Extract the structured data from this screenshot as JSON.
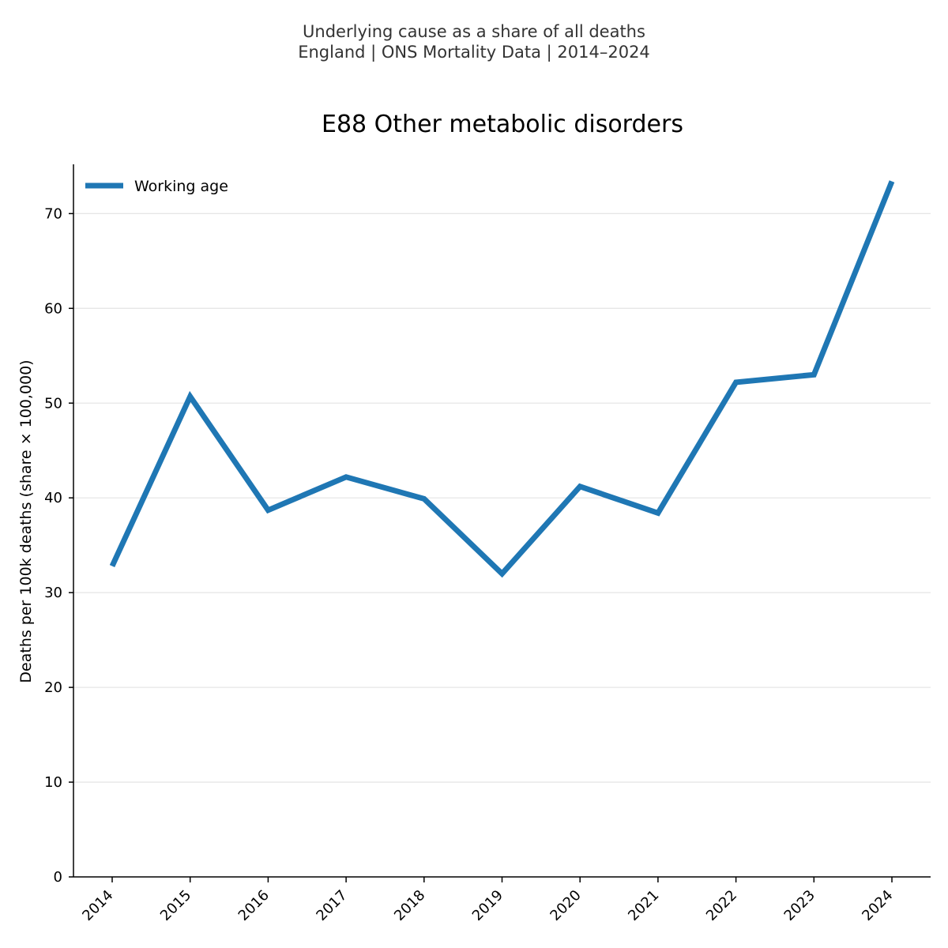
{
  "header": {
    "suptitle_line1": "Underlying cause as a share of all deaths",
    "suptitle_line2": "England | ONS Mortality Data | 2014–2024"
  },
  "chart_data": {
    "type": "line",
    "title": "E88 Other metabolic disorders",
    "xlabel": "",
    "ylabel": "Deaths per 100k deaths (share × 100,000)",
    "categories": [
      "2014",
      "2015",
      "2016",
      "2017",
      "2018",
      "2019",
      "2020",
      "2021",
      "2022",
      "2023",
      "2024"
    ],
    "series": [
      {
        "name": "Working age",
        "color": "#1f77b4",
        "values": [
          32.8,
          50.7,
          38.7,
          42.2,
          39.9,
          32.0,
          41.2,
          38.4,
          52.2,
          53.0,
          73.4
        ]
      }
    ],
    "yticks": [
      "0",
      "10",
      "20",
      "30",
      "40",
      "50",
      "60",
      "70"
    ],
    "ylim": [
      0,
      75.2
    ],
    "grid": "horizontal",
    "legend_position": "top-left"
  }
}
